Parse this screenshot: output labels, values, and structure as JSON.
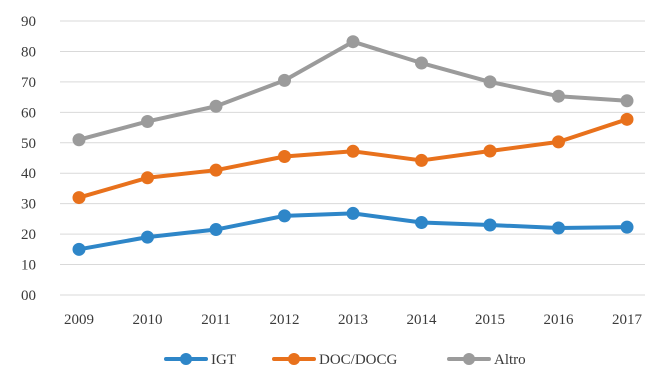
{
  "chart_data": {
    "type": "line",
    "x": [
      "2009",
      "2010",
      "2011",
      "2012",
      "2013",
      "2014",
      "2015",
      "2016",
      "2017"
    ],
    "y_ticks": [
      "00",
      "10",
      "20",
      "30",
      "40",
      "50",
      "60",
      "70",
      "80",
      "90"
    ],
    "ylim": [
      0,
      90
    ],
    "grid": true,
    "legend_position": "bottom",
    "series": [
      {
        "name": "IGT",
        "color": "#2e86c8",
        "values": [
          15,
          19,
          21.5,
          26,
          26.8,
          23.8,
          23,
          22,
          22.3
        ]
      },
      {
        "name": "DOC/DOCG",
        "color": "#e8711c",
        "values": [
          32,
          38.5,
          41,
          45.5,
          47.2,
          44.2,
          47.3,
          50.3,
          57.7
        ]
      },
      {
        "name": "Altro",
        "color": "#9b9b9b",
        "values": [
          51,
          57,
          62,
          70.5,
          83.2,
          76.2,
          70,
          65.3,
          63.8
        ]
      }
    ]
  }
}
